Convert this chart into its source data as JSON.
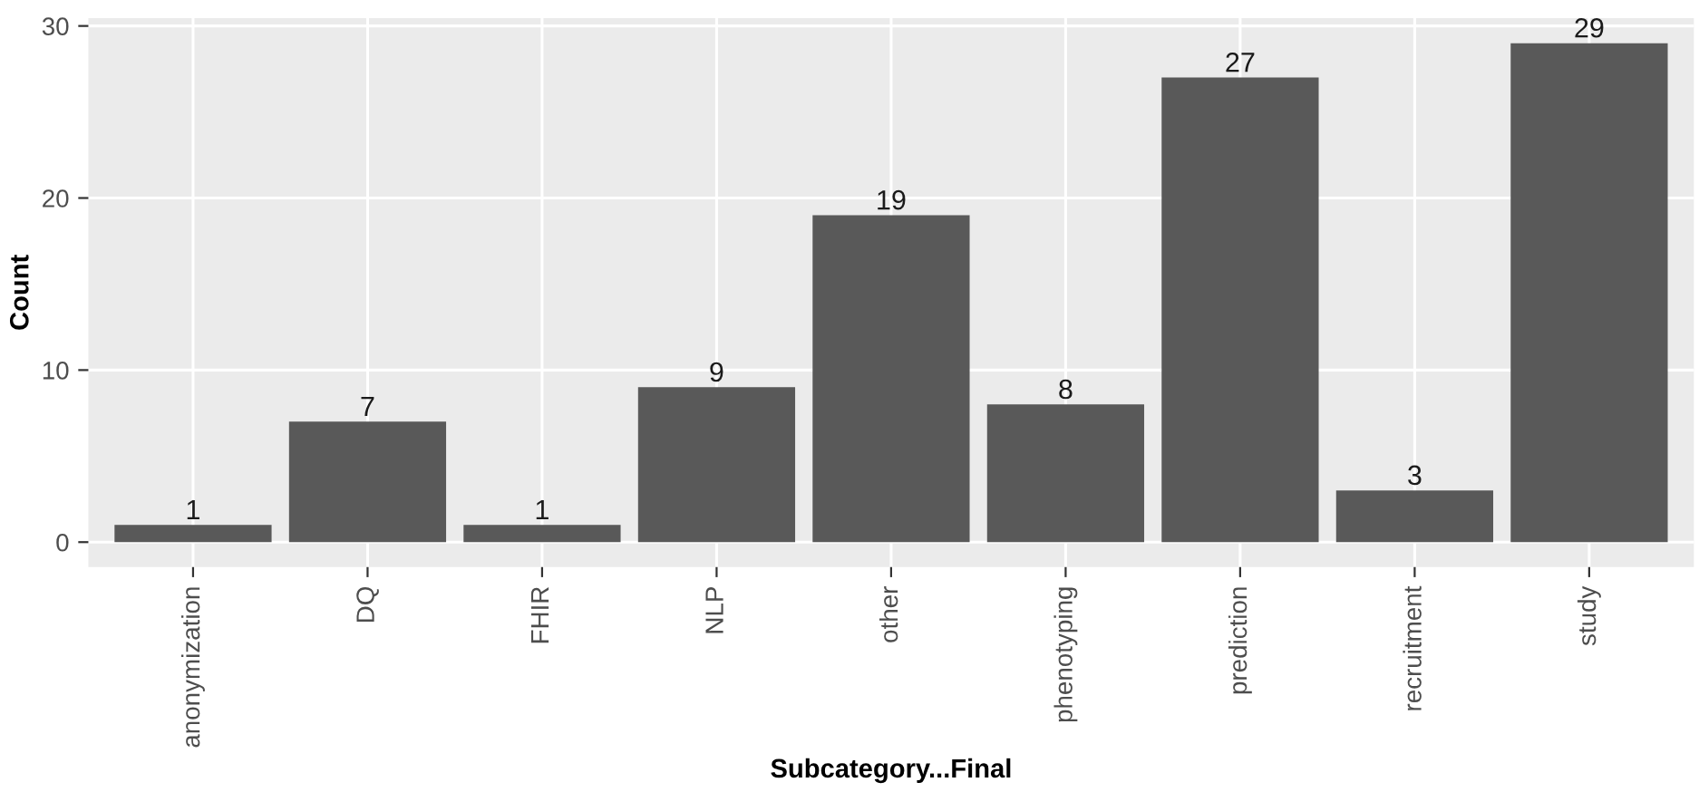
{
  "chart_data": {
    "type": "bar",
    "xlabel": "Subcategory...Final",
    "ylabel": "Count",
    "categories": [
      "anonymization",
      "DQ",
      "FHIR",
      "NLP",
      "other",
      "phenotyping",
      "prediction",
      "recruitment",
      "study"
    ],
    "values": [
      1,
      7,
      1,
      9,
      19,
      8,
      27,
      3,
      29
    ],
    "color": "#595959",
    "ylim": [
      -1.45,
      30.45
    ],
    "yticks": [
      0,
      10,
      20,
      30
    ],
    "grid": true,
    "data_labels": true
  }
}
